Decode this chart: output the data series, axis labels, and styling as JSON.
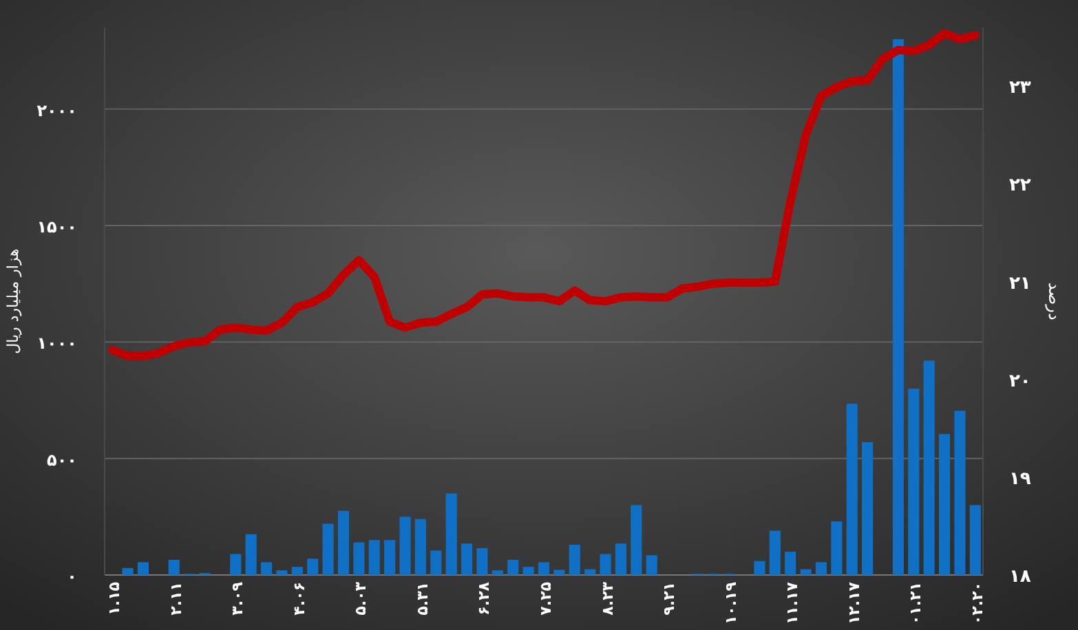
{
  "chart_data": {
    "type": "bar",
    "ylabel": "هزار میلیارد ریال",
    "y2label": "درصد",
    "categories": [
      "۱.۱۵",
      null,
      null,
      null,
      "۲.۱۱",
      null,
      null,
      null,
      "۳.۰۹",
      null,
      null,
      null,
      "۴.۰۶",
      null,
      null,
      null,
      "۵.۰۳",
      null,
      null,
      null,
      "۵.۳۱",
      null,
      null,
      null,
      "۶.۲۸",
      null,
      null,
      null,
      "۷.۲۵",
      null,
      null,
      null,
      "۸.۲۳",
      null,
      null,
      null,
      "۹.۲۱",
      null,
      null,
      null,
      "۱۰.۱۹",
      null,
      null,
      null,
      "۱۱.۱۷",
      null,
      null,
      null,
      "۱۲.۱۷",
      null,
      null,
      null,
      "۰۱.۲۱",
      null,
      null,
      null,
      "۰۲.۲۰"
    ],
    "series": [
      {
        "color": "#0f70c6",
        "values": [
          0,
          30,
          55,
          0,
          65,
          5,
          8,
          0,
          90,
          175,
          55,
          20,
          35,
          70,
          220,
          275,
          140,
          150,
          150,
          250,
          240,
          105,
          350,
          135,
          115,
          20,
          65,
          35,
          55,
          22,
          130,
          25,
          90,
          135,
          300,
          85,
          0,
          0,
          5,
          5,
          5,
          0,
          60,
          190,
          100,
          25,
          55,
          230,
          735,
          570,
          0,
          2300,
          800,
          920,
          605,
          705,
          300
        ]
      },
      {
        "type": "line",
        "axis": "y2",
        "color": "#c00000",
        "values": [
          20.3,
          20.24,
          20.24,
          20.27,
          20.34,
          20.38,
          20.39,
          20.51,
          20.53,
          20.51,
          20.5,
          20.58,
          20.74,
          20.79,
          20.88,
          21.07,
          21.22,
          21.05,
          20.59,
          20.53,
          20.58,
          20.59,
          20.67,
          20.74,
          20.87,
          20.88,
          20.85,
          20.84,
          20.84,
          20.8,
          20.91,
          20.81,
          20.8,
          20.84,
          20.85,
          20.84,
          20.84,
          20.93,
          20.95,
          20.98,
          20.99,
          20.99,
          20.99,
          21.0,
          21.82,
          22.5,
          22.9,
          22.99,
          23.05,
          23.06,
          23.28,
          23.37,
          23.36,
          23.42,
          23.54,
          23.48,
          23.52
        ]
      }
    ],
    "ylim": [
      0,
      2350
    ],
    "yticks": [
      {
        "value": 0,
        "label": "۰"
      },
      {
        "value": 500,
        "label": "۵۰۰"
      },
      {
        "value": 1000,
        "label": "۱۰۰۰"
      },
      {
        "value": 1500,
        "label": "۱۵۰۰"
      },
      {
        "value": 2000,
        "label": "۲۰۰۰"
      }
    ],
    "y2lim": [
      18,
      23.6
    ],
    "y2ticks": [
      {
        "value": 18,
        "label": "۱۸"
      },
      {
        "value": 19,
        "label": "۱۹"
      },
      {
        "value": 20,
        "label": "۲۰"
      },
      {
        "value": 21,
        "label": "۲۱"
      },
      {
        "value": 22,
        "label": "۲۲"
      },
      {
        "value": 23,
        "label": "۲۳"
      }
    ],
    "grid": "y"
  }
}
